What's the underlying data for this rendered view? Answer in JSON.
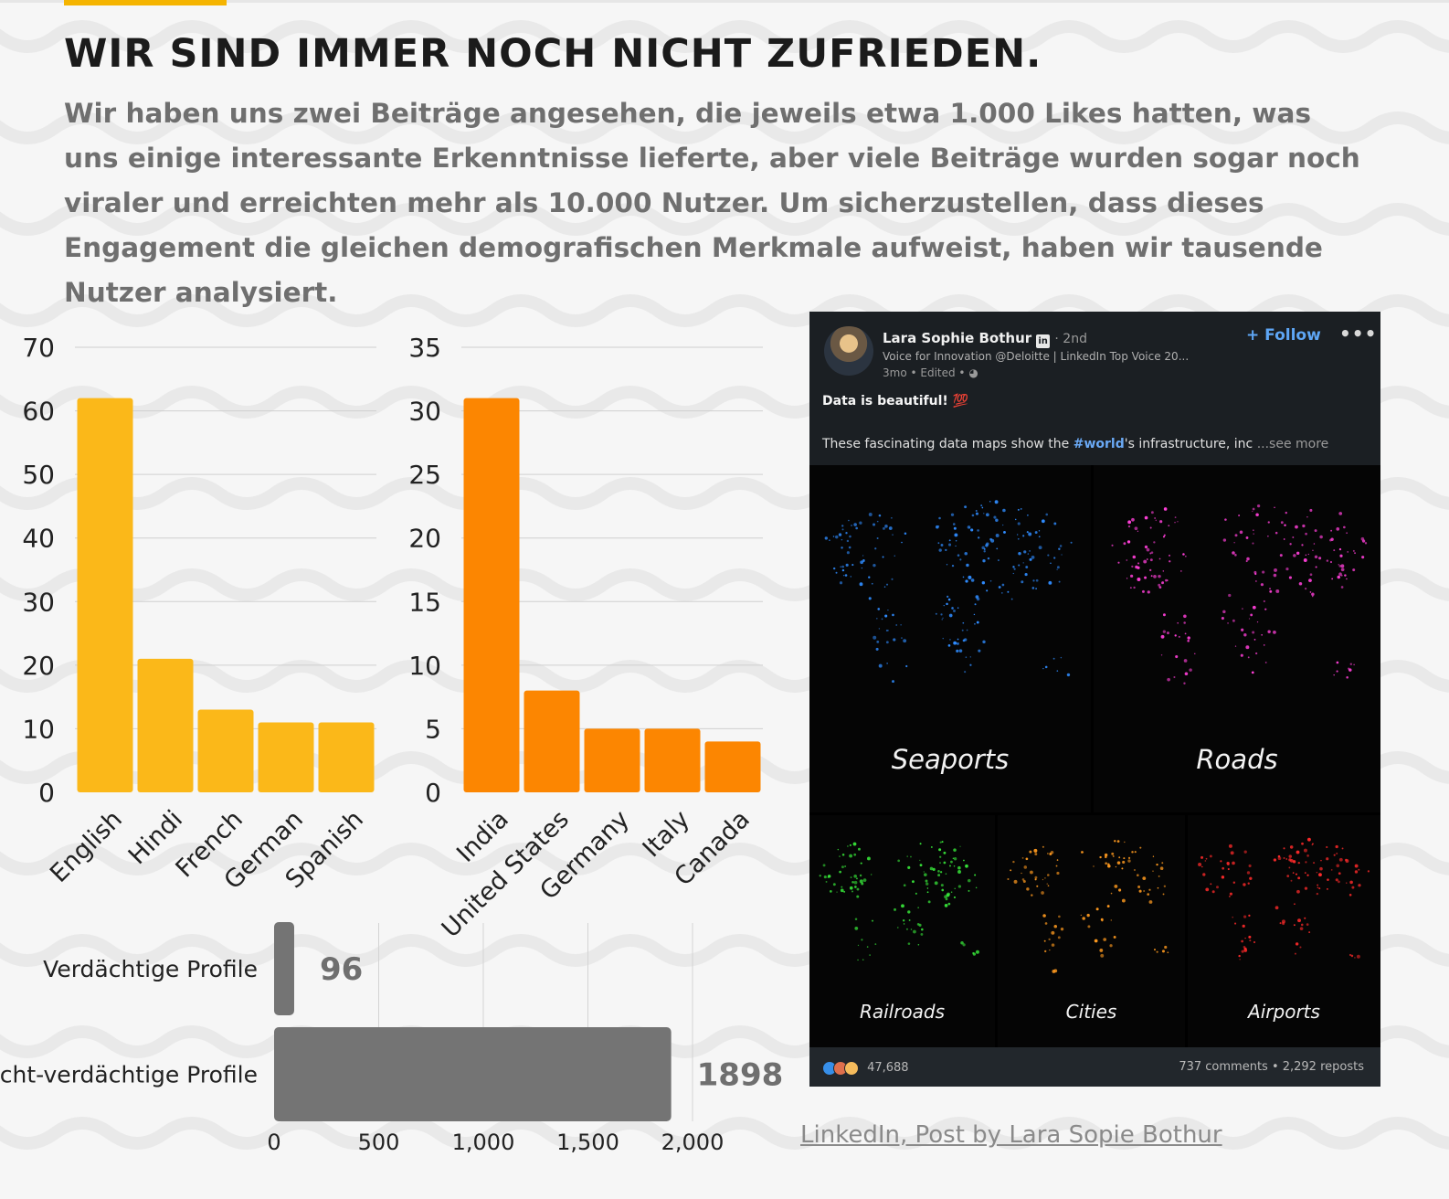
{
  "header": {
    "title": "WIR SIND IMMER NOCH NICHT ZUFRIEDEN.",
    "intro": "Wir haben uns zwei Beiträge angesehen, die jeweils etwa 1.000 Likes hatten, was uns einige interessante Erkenntnisse lieferte, aber viele Beiträge wurden sogar noch viraler und erreichten mehr als 10.000 Nutzer. Um sicherzustellen, dass dieses Engagement die gleichen demografischen Merkmale aufweist, haben wir tausende Nutzer analysiert."
  },
  "colors": {
    "accent": "#f5b400",
    "languages_bar": "#fbb819",
    "countries_bar": "#fc8601",
    "profiles_bar": "#747474",
    "post_bg": "#1b1f23"
  },
  "chart_data": [
    {
      "type": "bar",
      "categories": [
        "English",
        "Hindi",
        "French",
        "German",
        "Spanish"
      ],
      "values": [
        62,
        21,
        13,
        11,
        11
      ],
      "ylim": [
        0,
        70
      ],
      "yticks": [
        0,
        10,
        20,
        30,
        40,
        50,
        60,
        70
      ],
      "title": "",
      "xlabel": "",
      "ylabel": "",
      "grid": true,
      "color": "#fbb819"
    },
    {
      "type": "bar",
      "categories": [
        "India",
        "United States",
        "Germany",
        "Italy",
        "Canada"
      ],
      "values": [
        31,
        8,
        5,
        5,
        4
      ],
      "ylim": [
        0,
        35
      ],
      "yticks": [
        0,
        5,
        10,
        15,
        20,
        25,
        30,
        35
      ],
      "title": "",
      "xlabel": "",
      "ylabel": "",
      "grid": true,
      "color": "#fc8601"
    },
    {
      "type": "bar",
      "orientation": "horizontal",
      "categories": [
        "Verdächtige Profile",
        "Nicht-verdächtige Profile"
      ],
      "values": [
        96,
        1898
      ],
      "value_labels": [
        "96",
        "1898"
      ],
      "xlim": [
        0,
        2000
      ],
      "xticks": [
        "0",
        "500",
        "1,000",
        "1,500",
        "2,000"
      ],
      "title": "",
      "xlabel": "",
      "ylabel": "",
      "grid": true,
      "color": "#747474"
    }
  ],
  "post": {
    "author": "Lara Sophie Bothur",
    "badge": "in",
    "degree": "· 2nd",
    "headline": "Voice for Innovation @Deloitte | LinkedIn Top Voice 20...",
    "meta": "3mo • Edited • ",
    "follow_label": "+ Follow",
    "more_label": "•••",
    "headline_text": "Data is beautiful! 💯",
    "body_prefix": "These fascinating data maps show the ",
    "hashtag": "#world",
    "body_suffix": "'s infrastructure, inc",
    "see_more": " ...see more",
    "maps": [
      {
        "label": "Seaports",
        "color": "#2f8cff"
      },
      {
        "label": "Roads",
        "color": "#ff3fd8"
      },
      {
        "label": "Railroads",
        "color": "#38e83a"
      },
      {
        "label": "Cities",
        "color": "#ff9a1f"
      },
      {
        "label": "Airports",
        "color": "#ff2a2a"
      }
    ],
    "reaction_count": "47,688",
    "stats": "737 comments • 2,292 reposts"
  },
  "source": {
    "label": "LinkedIn, Post by Lara Sopie Bothur"
  }
}
